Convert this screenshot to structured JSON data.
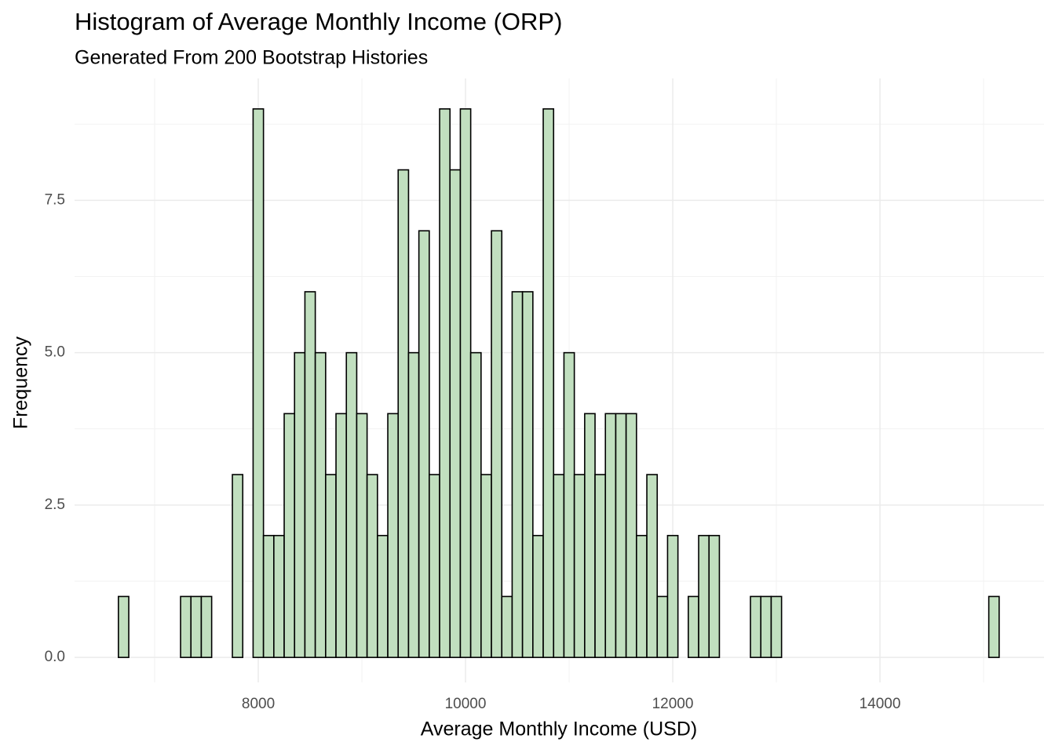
{
  "chart_data": {
    "type": "histogram",
    "title": "Histogram of Average Monthly Income (ORP)",
    "subtitle": "Generated From 200 Bootstrap Histories",
    "x_label": "Average Monthly Income (USD)",
    "y_label": "Frequency",
    "bins": [
      6650,
      6750,
      6850,
      6950,
      7050,
      7150,
      7250,
      7350,
      7450,
      7550,
      7650,
      7750,
      7850,
      7950,
      8050,
      8150,
      8250,
      8350,
      8450,
      8550,
      8650,
      8750,
      8850,
      8950,
      9050,
      9150,
      9250,
      9350,
      9450,
      9550,
      9650,
      9750,
      9850,
      9950,
      10050,
      10150,
      10250,
      10350,
      10450,
      10550,
      10650,
      10750,
      10850,
      10950,
      11050,
      11150,
      11250,
      11350,
      11450,
      11550,
      11650,
      11750,
      11850,
      11950,
      12050,
      12150,
      12250,
      12350,
      12450,
      12550,
      12650,
      12750,
      12850,
      12950,
      13050,
      13150,
      13250,
      13350,
      13450,
      13550,
      13650,
      13750,
      13850,
      13950,
      14050,
      14150,
      14250,
      14350,
      14450,
      14550,
      14650,
      14750,
      14850,
      14950,
      15050,
      15150
    ],
    "values": [
      1,
      0,
      0,
      0,
      0,
      0,
      1,
      1,
      1,
      0,
      0,
      3,
      0,
      9,
      2,
      2,
      4,
      5,
      6,
      5,
      3,
      4,
      5,
      4,
      3,
      2,
      4,
      8,
      5,
      7,
      3,
      9,
      8,
      9,
      5,
      3,
      7,
      1,
      6,
      6,
      2,
      9,
      3,
      5,
      3,
      4,
      3,
      4,
      4,
      4,
      2,
      3,
      1,
      2,
      0,
      1,
      2,
      2,
      0,
      0,
      0,
      1,
      1,
      1,
      0,
      0,
      0,
      0,
      0,
      0,
      0,
      0,
      0,
      0,
      0,
      0,
      0,
      0,
      0,
      0,
      0,
      0,
      0,
      0,
      1
    ],
    "color": "#c1dfbf",
    "xlim": [
      6227,
      15583
    ],
    "ylim": [
      -0.41,
      9.5
    ],
    "xticks": [
      8000,
      10000,
      12000,
      14000
    ],
    "yticks": [
      {
        "value": 0,
        "label": "0.0"
      },
      2.5,
      {
        "value": 5,
        "label": "5.0"
      },
      7.5
    ],
    "grid": true
  }
}
